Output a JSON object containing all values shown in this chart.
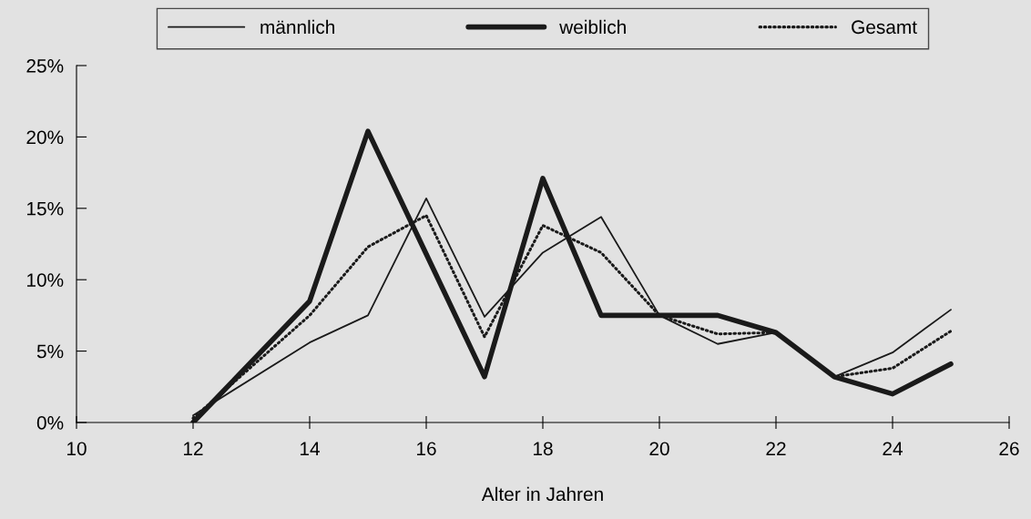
{
  "chart_data": {
    "type": "line",
    "xlabel": "Alter in Jahren",
    "x": [
      12,
      14,
      15,
      16,
      17,
      18,
      19,
      20,
      21,
      22,
      23,
      24,
      25
    ],
    "series": [
      {
        "name": "männlich",
        "color": "#1a1a1a",
        "line_style": "solid",
        "values": [
          0.5,
          5.6,
          7.5,
          15.7,
          7.4,
          11.9,
          14.4,
          7.5,
          5.5,
          6.3,
          3.2,
          4.9,
          7.9
        ]
      },
      {
        "name": "weiblich",
        "color": "#1a1a1a",
        "line_style": "solid",
        "values": [
          0,
          8.5,
          20.4,
          11.8,
          3.2,
          17.1,
          7.5,
          7.5,
          7.5,
          6.3,
          3.2,
          2.0,
          4.1
        ]
      },
      {
        "name": "Gesamt",
        "color": "#1a1a1a",
        "line_style": "dotted",
        "values": [
          0.3,
          7.5,
          12.3,
          14.5,
          6.0,
          13.8,
          11.9,
          7.5,
          6.2,
          6.3,
          3.2,
          3.8,
          6.4
        ]
      }
    ],
    "xlim": [
      10,
      26
    ],
    "xticks": [
      10,
      12,
      14,
      16,
      18,
      20,
      22,
      24,
      26
    ],
    "ylim": [
      0,
      25
    ],
    "yticks": [
      {
        "value": 0,
        "label": "0%"
      },
      {
        "value": 5,
        "label": "5%"
      },
      {
        "value": 10,
        "label": "10%"
      },
      {
        "value": 15,
        "label": "15%"
      },
      {
        "value": 20,
        "label": "20%"
      },
      {
        "value": 25,
        "label": "25%"
      }
    ],
    "grid": false,
    "legend": "top",
    "marker": "none"
  }
}
